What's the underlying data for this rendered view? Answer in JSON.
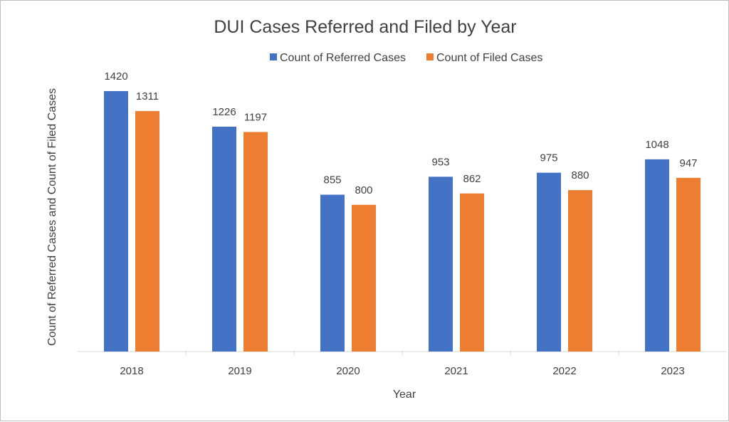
{
  "chart_data": {
    "type": "bar",
    "title": "DUI Cases Referred and Filed by Year",
    "xlabel": "Year",
    "ylabel": "Count of Referred Cases and Count of Filed Cases",
    "categories": [
      "2018",
      "2019",
      "2020",
      "2021",
      "2022",
      "2023"
    ],
    "series": [
      {
        "name": "Count of Referred Cases",
        "color": "#4472C4",
        "values": [
          1420,
          1226,
          855,
          953,
          975,
          1048
        ]
      },
      {
        "name": "Count of Filed Cases",
        "color": "#ED7D31",
        "values": [
          1311,
          1197,
          800,
          862,
          880,
          947
        ]
      }
    ],
    "ylim": [
      0,
      1420
    ],
    "grid": false,
    "legend_position": "top",
    "data_labels": true
  }
}
